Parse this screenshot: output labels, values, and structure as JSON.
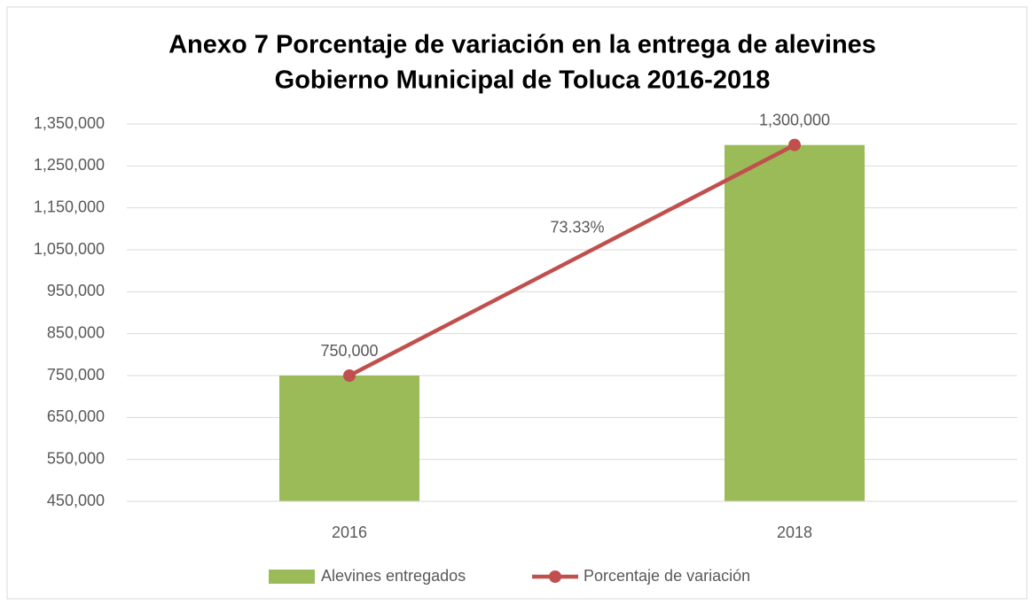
{
  "chart_data": {
    "type": "bar-line",
    "title": [
      "Anexo 7 Porcentaje de variación en la entrega de alevines",
      "Gobierno Municipal de Toluca 2016-2018"
    ],
    "categories": [
      "2016",
      "2018"
    ],
    "series": [
      {
        "name": "Alevines entregados",
        "type": "bar",
        "color": "#9bbb59",
        "values": [
          750000,
          1300000
        ]
      },
      {
        "name": "Porcentaje de variación",
        "type": "line",
        "color": "#c0504d",
        "values": [
          750000,
          1300000
        ],
        "value_labels": [
          "750,000",
          "1,300,000"
        ]
      }
    ],
    "annotations": [
      {
        "text": "73.33%"
      }
    ],
    "ylim": [
      450000,
      1350000
    ],
    "yticks": [
      {
        "value": 450000,
        "label": "450,000"
      },
      {
        "value": 550000,
        "label": "550,000"
      },
      {
        "value": 650000,
        "label": "650,000"
      },
      {
        "value": 750000,
        "label": "750,000"
      },
      {
        "value": 850000,
        "label": "850,000"
      },
      {
        "value": 950000,
        "label": "950,000"
      },
      {
        "value": 1050000,
        "label": "1,050,000"
      },
      {
        "value": 1150000,
        "label": "1,150,000"
      },
      {
        "value": 1250000,
        "label": "1,250,000"
      },
      {
        "value": 1350000,
        "label": "1,350,000"
      }
    ],
    "grid": true,
    "legend": "bottom"
  }
}
